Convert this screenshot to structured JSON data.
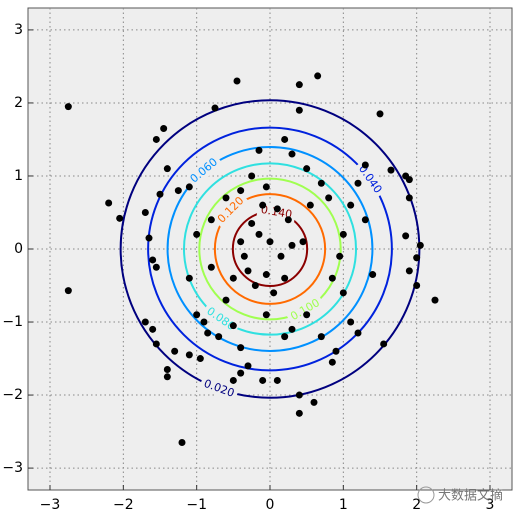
{
  "chart_data": {
    "type": "contour",
    "xlim": [
      -3.3,
      3.3
    ],
    "ylim": [
      -3.3,
      3.3
    ],
    "xticks": [
      {
        "value": -3,
        "label": "−3"
      },
      {
        "value": -2,
        "label": "−2"
      },
      {
        "value": -1,
        "label": "−1"
      },
      0,
      1,
      2,
      3
    ],
    "yticks": [
      {
        "value": -3,
        "label": "−3"
      },
      {
        "value": -2,
        "label": "−2"
      },
      {
        "value": -1,
        "label": "−1"
      },
      0,
      1,
      2,
      3
    ],
    "grid": true,
    "contours": [
      {
        "value": 0.02,
        "label": "0.020",
        "color": "#00007f"
      },
      {
        "value": 0.04,
        "label": "0.040",
        "color": "#0022dd"
      },
      {
        "value": 0.06,
        "label": "0.060",
        "color": "#0090ff"
      },
      {
        "value": 0.08,
        "label": "0.080",
        "color": "#2fe0e0"
      },
      {
        "value": 0.1,
        "label": "0.100",
        "color": "#a0ff50"
      },
      {
        "value": 0.12,
        "label": "0.120",
        "color": "#ff6a00"
      },
      {
        "value": 0.14,
        "label": "0.140",
        "color": "#8b0000"
      }
    ],
    "points": {
      "color": "#000000",
      "x": [
        -2.75,
        -2.75,
        -2.2,
        -2.05,
        -1.2,
        -0.45,
        0.4,
        0.65,
        0.4,
        -0.75,
        1.5,
        1.65,
        1.85,
        1.9,
        1.85,
        2.05,
        2.0,
        1.9,
        2.0,
        2.25,
        1.55,
        1.2,
        1.1,
        -1.7,
        -1.6,
        -1.55,
        -1.3,
        -1.4,
        -1.4,
        -1.1,
        -1.65,
        -1.6,
        -1.55,
        -1.7,
        -1.5,
        -1.4,
        -1.55,
        -1.45,
        -1.25,
        -1.1,
        -1.0,
        -1.1,
        -1.0,
        -0.9,
        -0.85,
        -0.7,
        -0.5,
        -0.4,
        -0.3,
        -0.4,
        -0.1,
        0.1,
        0.4,
        0.4,
        0.6,
        0.85,
        0.9,
        1.0,
        0.85,
        0.95,
        1.0,
        1.1,
        0.8,
        0.7,
        0.5,
        0.3,
        0.2,
        -0.15,
        -0.05,
        -0.4,
        -0.6,
        -0.8,
        -0.4,
        -0.35,
        -0.3,
        -0.2,
        -0.05,
        0.05,
        0.2,
        0.3,
        0.45,
        0.25,
        0.1,
        -0.1,
        -0.25,
        -0.15,
        0.0,
        0.15,
        -0.5,
        -0.6,
        0.5,
        0.7,
        0.3,
        1.3,
        1.2,
        1.4,
        1.3,
        -0.05,
        0.55,
        -0.8,
        1.9,
        -0.95,
        -0.5,
        0.2,
        -0.25
      ],
      "y": [
        1.95,
        -0.57,
        0.63,
        0.42,
        -2.65,
        2.3,
        2.25,
        2.37,
        1.9,
        1.93,
        1.85,
        1.08,
        1.0,
        0.7,
        0.18,
        0.05,
        -0.12,
        -0.3,
        -0.5,
        -0.7,
        -1.3,
        -1.15,
        -1.0,
        -1.0,
        -1.1,
        -1.3,
        -1.4,
        -1.65,
        -1.75,
        -1.45,
        0.15,
        -0.15,
        -0.25,
        0.5,
        0.75,
        1.1,
        1.5,
        1.65,
        0.8,
        0.85,
        0.2,
        -0.4,
        -0.9,
        -1.0,
        -1.15,
        -1.2,
        -1.05,
        -1.35,
        -1.6,
        -1.7,
        -1.8,
        -1.8,
        -2.0,
        -2.25,
        -2.1,
        -1.55,
        -1.4,
        -0.6,
        -0.4,
        -0.1,
        0.2,
        0.6,
        0.7,
        0.9,
        1.1,
        1.3,
        1.5,
        1.35,
        0.85,
        0.8,
        0.7,
        0.4,
        0.1,
        -0.1,
        -0.3,
        -0.5,
        -0.35,
        -0.6,
        -0.4,
        0.05,
        0.1,
        0.4,
        0.55,
        0.6,
        0.35,
        0.2,
        0.1,
        -0.1,
        -0.4,
        -0.7,
        -0.9,
        -1.2,
        -1.1,
        1.15,
        0.9,
        -0.35,
        0.4,
        -0.9,
        0.6,
        -0.25,
        0.95,
        -1.5,
        -1.8,
        -1.2,
        1.0
      ]
    }
  },
  "watermark": "大数据文摘"
}
